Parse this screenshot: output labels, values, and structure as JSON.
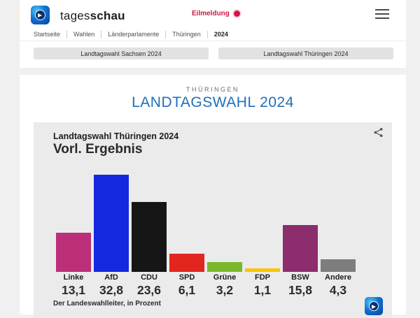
{
  "header": {
    "brand": {
      "name_regular": "tages",
      "name_bold": "schau"
    },
    "breaking_label": "Eilmeldung",
    "breadcrumb": [
      "Startseite",
      "Wahlen",
      "Länderparlamente",
      "Thüringen",
      "2024"
    ],
    "tabs": [
      {
        "label": "Landtagswahl Sachsen 2024"
      },
      {
        "label": "Landtagswahl Thüringen 2024"
      }
    ]
  },
  "main": {
    "kicker": "THÜRINGEN",
    "title": "LANDTAGSWAHL 2024"
  },
  "chart_data": {
    "type": "bar",
    "title": "Landtagswahl Thüringen 2024",
    "subtitle": "Vorl. Ergebnis",
    "source": "Der Landeswahlleiter, in Prozent",
    "unit": "Prozent",
    "categories": [
      "Linke",
      "AfD",
      "CDU",
      "SPD",
      "Grüne",
      "FDP",
      "BSW",
      "Andere"
    ],
    "values": [
      13.1,
      32.8,
      23.6,
      6.1,
      3.2,
      1.1,
      15.8,
      4.3
    ],
    "value_labels": [
      "13,1",
      "32,8",
      "23,6",
      "6,1",
      "3,2",
      "1,1",
      "15,8",
      "4,3"
    ],
    "colors": [
      "#bb3078",
      "#1428df",
      "#161616",
      "#e2251f",
      "#7ab829",
      "#fcc400",
      "#8c2d6e",
      "#7d7d7d"
    ],
    "ylim": [
      0,
      35
    ],
    "grid": false,
    "legend": false
  },
  "colors": {
    "accent_blue": "#1e6fbd",
    "breaking_red": "#d11548",
    "page_bg": "#f0f0f1",
    "card_bg": "#ebebec"
  }
}
